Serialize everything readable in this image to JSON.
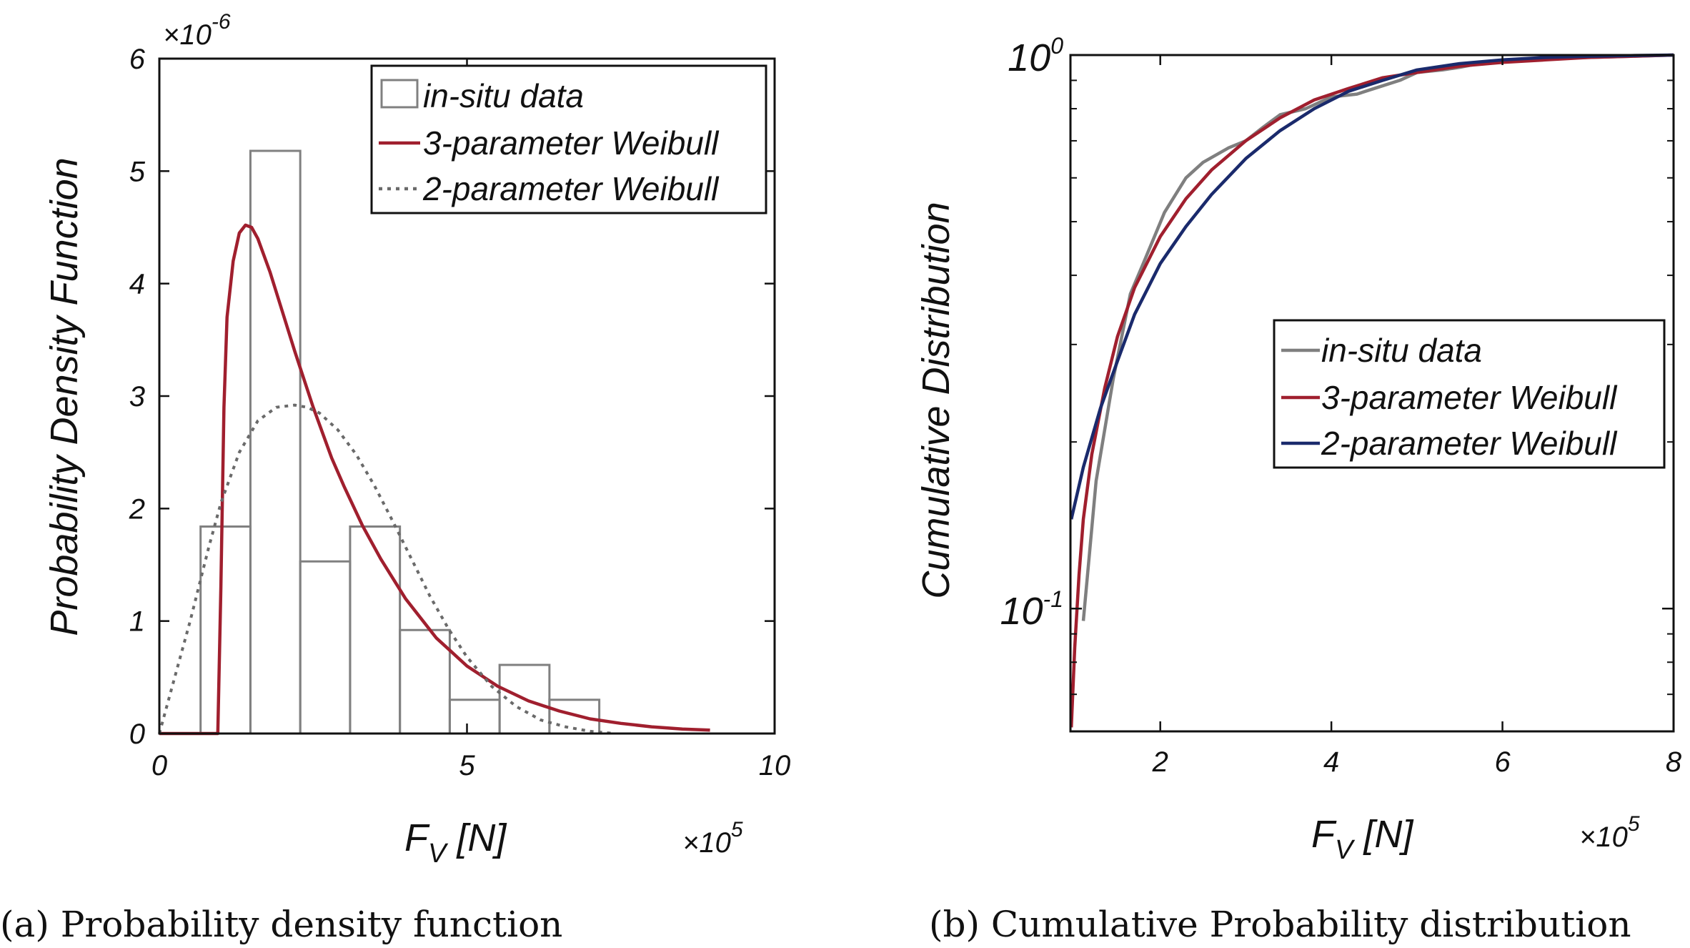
{
  "chart_data": [
    {
      "type": "bar",
      "title": "",
      "caption": "(a) Probability density function",
      "xlabel_main": "F",
      "xlabel_sub": "V",
      "xlabel_unit": " [N]",
      "ylabel": "Probability Density Function",
      "x_exponent_base": "×10",
      "x_exponent": "5",
      "y_exponent_base": "×10",
      "y_exponent": "-6",
      "xlim": [
        0,
        10
      ],
      "ylim": [
        0,
        6
      ],
      "x_ticks": [
        "0",
        "5",
        "10"
      ],
      "y_ticks": [
        "0",
        "1",
        "2",
        "3",
        "4",
        "5",
        "6"
      ],
      "histogram": {
        "name": "in-situ data",
        "color": "#808080",
        "bin_edges": [
          0.67,
          1.48,
          2.29,
          3.1,
          3.91,
          4.72,
          5.53,
          6.34,
          7.15
        ],
        "values": [
          1.84,
          5.18,
          1.53,
          1.84,
          0.92,
          0.3,
          0.61,
          0.3
        ]
      },
      "series": [
        {
          "name": "3-parameter Weibull",
          "color": "#a01f2e",
          "style": "solid",
          "x": [
            0,
            0.95,
            1.0,
            1.05,
            1.1,
            1.2,
            1.3,
            1.4,
            1.5,
            1.6,
            1.8,
            2.0,
            2.2,
            2.5,
            2.8,
            3.0,
            3.3,
            3.6,
            4.0,
            4.5,
            5.0,
            5.5,
            6.0,
            6.5,
            7.0,
            7.5,
            8.0,
            8.5,
            8.95
          ],
          "y": [
            0,
            0,
            1.3,
            2.9,
            3.7,
            4.2,
            4.45,
            4.52,
            4.5,
            4.4,
            4.1,
            3.75,
            3.4,
            2.9,
            2.45,
            2.2,
            1.85,
            1.55,
            1.2,
            0.85,
            0.6,
            0.42,
            0.29,
            0.2,
            0.13,
            0.09,
            0.06,
            0.04,
            0.03
          ]
        },
        {
          "name": "2-parameter Weibull",
          "color": "#6a6a6a",
          "style": "dotted",
          "x": [
            0,
            0.2,
            0.5,
            0.8,
            1.0,
            1.3,
            1.6,
            1.9,
            2.2,
            2.4,
            2.6,
            2.9,
            3.2,
            3.5,
            3.8,
            4.1,
            4.4,
            4.7,
            5.0,
            5.4,
            5.8,
            6.2,
            6.6,
            7.0,
            7.4
          ],
          "y": [
            0,
            0.4,
            1.0,
            1.65,
            2.05,
            2.5,
            2.78,
            2.9,
            2.92,
            2.9,
            2.85,
            2.7,
            2.48,
            2.2,
            1.88,
            1.55,
            1.22,
            0.93,
            0.68,
            0.42,
            0.24,
            0.12,
            0.06,
            0.02,
            0.0
          ]
        }
      ]
    },
    {
      "type": "line",
      "title": "",
      "caption": "(b) Cumulative Probability distribution",
      "xlabel_main": "F",
      "xlabel_sub": "V",
      "xlabel_unit": " [N]",
      "ylabel": "Cumulative Distribution",
      "x_exponent_base": "×10",
      "x_exponent": "5",
      "y_scale": "log",
      "xlim": [
        0.95,
        8
      ],
      "ylim": [
        0.06,
        1
      ],
      "x_ticks": [
        "2",
        "4",
        "6",
        "8"
      ],
      "y_ticks": [
        {
          "base": "10",
          "exp": "0",
          "value": 1
        },
        {
          "base": "10",
          "exp": "-1",
          "value": 0.1
        }
      ],
      "series": [
        {
          "name": "in-situ data",
          "color": "#7f7f7f",
          "x": [
            1.1,
            1.25,
            1.45,
            1.65,
            1.8,
            2.05,
            2.3,
            2.5,
            2.8,
            3.0,
            3.2,
            3.4,
            3.7,
            4.0,
            4.3,
            4.5,
            4.8,
            5.0,
            5.3,
            5.5,
            5.8,
            6.0,
            6.5,
            7.0,
            7.5,
            8.0
          ],
          "y": [
            0.095,
            0.17,
            0.26,
            0.37,
            0.42,
            0.52,
            0.6,
            0.64,
            0.68,
            0.7,
            0.74,
            0.78,
            0.8,
            0.84,
            0.85,
            0.87,
            0.9,
            0.93,
            0.94,
            0.95,
            0.97,
            0.98,
            0.985,
            0.99,
            0.995,
            1.0
          ]
        },
        {
          "name": "3-parameter Weibull",
          "color": "#a01f2e",
          "x": [
            0.96,
            1.0,
            1.05,
            1.1,
            1.2,
            1.35,
            1.5,
            1.7,
            2.0,
            2.3,
            2.6,
            3.0,
            3.4,
            3.8,
            4.2,
            4.6,
            5.0,
            5.5,
            6.0,
            6.5,
            7.0,
            7.5,
            8.0
          ],
          "y": [
            0.061,
            0.085,
            0.115,
            0.145,
            0.19,
            0.25,
            0.31,
            0.38,
            0.47,
            0.55,
            0.62,
            0.7,
            0.77,
            0.83,
            0.87,
            0.91,
            0.93,
            0.955,
            0.97,
            0.98,
            0.99,
            0.995,
            1.0
          ]
        },
        {
          "name": "2-parameter Weibull",
          "color": "#1a2a6c",
          "x": [
            0.96,
            1.1,
            1.3,
            1.5,
            1.7,
            2.0,
            2.3,
            2.6,
            3.0,
            3.4,
            3.8,
            4.2,
            4.6,
            5.0,
            5.5,
            6.0,
            6.5,
            7.0,
            7.5,
            8.0
          ],
          "y": [
            0.145,
            0.18,
            0.23,
            0.28,
            0.34,
            0.42,
            0.49,
            0.56,
            0.65,
            0.73,
            0.8,
            0.86,
            0.9,
            0.94,
            0.965,
            0.98,
            0.99,
            0.995,
            0.998,
            1.0
          ]
        }
      ]
    }
  ]
}
